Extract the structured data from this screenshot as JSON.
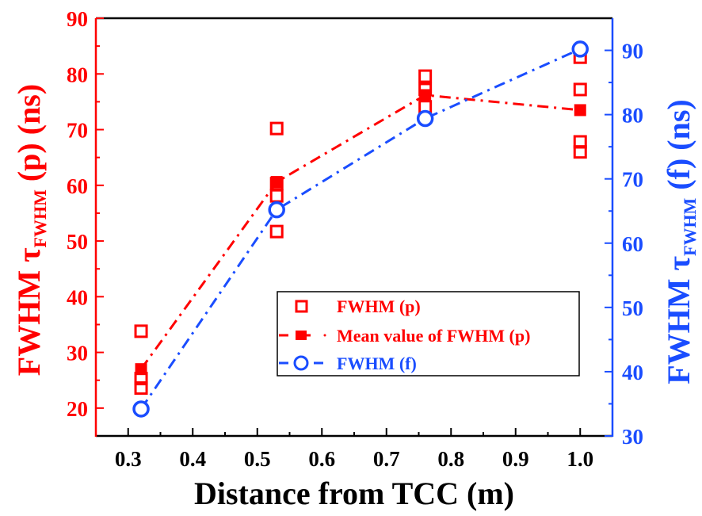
{
  "chart_data": {
    "type": "scatter",
    "title": "",
    "xlabel": "Distance from TCC (m)",
    "ylabel_left": {
      "prefix": "FWHM ",
      "symbol": "τ",
      "subscript": "FWHM",
      "suffix": " (p) (ns)"
    },
    "ylabel_right": {
      "prefix": "FWHM ",
      "symbol": "τ",
      "subscript": "FWHM",
      "suffix": " (f) (ns)"
    },
    "xlim": [
      0.25,
      1.05
    ],
    "ylim_left": [
      15,
      90
    ],
    "ylim_right": [
      30,
      95
    ],
    "x_ticks": [
      "0.3",
      "0.4",
      "0.5",
      "0.6",
      "0.7",
      "0.8",
      "0.9",
      "1.0"
    ],
    "x_tick_values": [
      0.3,
      0.4,
      0.5,
      0.6,
      0.7,
      0.8,
      0.9,
      1.0
    ],
    "y_ticks_left": [
      "20",
      "30",
      "40",
      "50",
      "60",
      "70",
      "80",
      "90"
    ],
    "y_tick_values_left": [
      20,
      30,
      40,
      50,
      60,
      70,
      80,
      90
    ],
    "y_ticks_right": [
      "30",
      "40",
      "50",
      "60",
      "70",
      "80",
      "90"
    ],
    "y_tick_values_right": [
      30,
      40,
      50,
      60,
      70,
      80,
      90
    ],
    "grid": false,
    "colors": {
      "left_axis": "#ff0000",
      "right_axis": "#1a4dff",
      "bottom_axis": "#000000",
      "top_axis": "#000000",
      "p_series": "#ff0000",
      "f_series": "#1a4dff"
    },
    "series": [
      {
        "name": "FWHM (p)",
        "axis": "left",
        "marker": "open-square",
        "line": "none",
        "color": "#ff0000",
        "points": [
          {
            "x": 0.32,
            "y": 33.8
          },
          {
            "x": 0.32,
            "y": 25.3
          },
          {
            "x": 0.32,
            "y": 23.6
          },
          {
            "x": 0.53,
            "y": 70.2
          },
          {
            "x": 0.53,
            "y": 60.3
          },
          {
            "x": 0.53,
            "y": 58.1
          },
          {
            "x": 0.53,
            "y": 51.7
          },
          {
            "x": 0.76,
            "y": 79.6
          },
          {
            "x": 0.76,
            "y": 77.2
          },
          {
            "x": 0.76,
            "y": 74.1
          },
          {
            "x": 1.0,
            "y": 83.0
          },
          {
            "x": 1.0,
            "y": 77.2
          },
          {
            "x": 1.0,
            "y": 67.8
          },
          {
            "x": 1.0,
            "y": 66.0
          }
        ]
      },
      {
        "name": "Mean value of FWHM (p)",
        "axis": "left",
        "marker": "filled-square",
        "line": "dash-dot",
        "color": "#ff0000",
        "points": [
          {
            "x": 0.32,
            "y": 27.0
          },
          {
            "x": 0.53,
            "y": 60.6
          },
          {
            "x": 0.76,
            "y": 76.2
          },
          {
            "x": 1.0,
            "y": 73.5
          }
        ]
      },
      {
        "name": "FWHM (f)",
        "axis": "right",
        "marker": "open-circle",
        "line": "dash-dot",
        "color": "#1a4dff",
        "points": [
          {
            "x": 0.32,
            "y": 34.2
          },
          {
            "x": 0.53,
            "y": 65.2
          },
          {
            "x": 0.76,
            "y": 79.4
          },
          {
            "x": 1.0,
            "y": 90.2
          }
        ]
      }
    ],
    "legend": {
      "position": "center-right",
      "entries": [
        {
          "label": "FWHM (p)",
          "color": "#ff0000"
        },
        {
          "label": "Mean value of FWHM (p)",
          "color": "#ff0000"
        },
        {
          "label": "FWHM (f)",
          "color": "#1a4dff"
        }
      ]
    }
  }
}
